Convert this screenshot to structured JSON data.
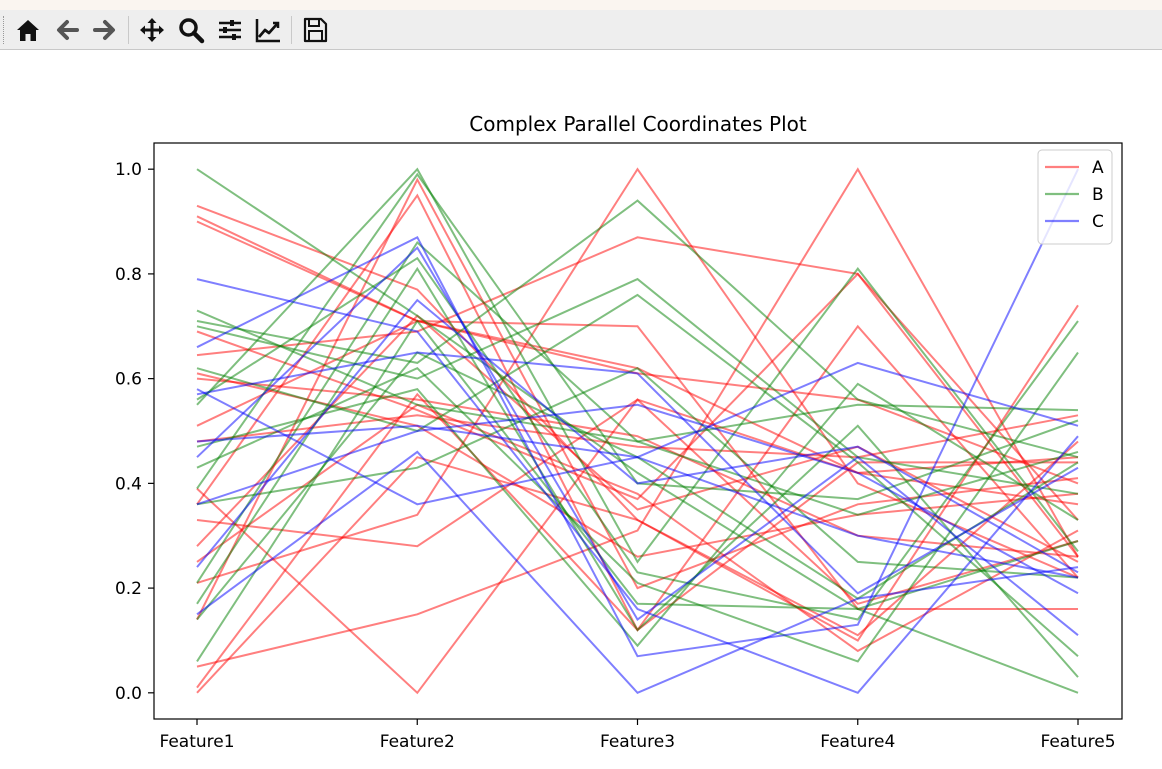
{
  "toolbar": {
    "buttons": [
      {
        "name": "home",
        "icon": "home-icon"
      },
      {
        "name": "back",
        "icon": "arrow-left-icon"
      },
      {
        "name": "forward",
        "icon": "arrow-right-icon"
      },
      {
        "name": "pan",
        "icon": "move-icon"
      },
      {
        "name": "zoom",
        "icon": "magnifier-icon"
      },
      {
        "name": "configure-subplots",
        "icon": "sliders-icon"
      },
      {
        "name": "edit-axis",
        "icon": "line-chart-icon"
      },
      {
        "name": "save",
        "icon": "floppy-disk-icon"
      }
    ]
  },
  "chart_data": {
    "type": "line",
    "title": "Complex Parallel Coordinates Plot",
    "categories": [
      "Feature1",
      "Feature2",
      "Feature3",
      "Feature4",
      "Feature5"
    ],
    "ylim": [
      -0.05,
      1.05
    ],
    "yticks": [
      0.0,
      0.2,
      0.4,
      0.6,
      0.8,
      1.0
    ],
    "ytick_labels": [
      "0.0",
      "0.2",
      "0.4",
      "0.6",
      "0.8",
      "1.0"
    ],
    "grid": false,
    "legend_position": "top-right",
    "line_alpha": 0.5,
    "series": [
      {
        "name": "A",
        "color": "#ff0000",
        "lines": [
          [
            0.93,
            0.77,
            0.33,
            0.1,
            0.74
          ],
          [
            0.91,
            0.71,
            0.7,
            0.16,
            0.16
          ],
          [
            0.9,
            0.71,
            0.62,
            0.42,
            0.36
          ],
          [
            0.69,
            0.54,
            0.37,
            0.8,
            0.26
          ],
          [
            0.645,
            0.69,
            0.87,
            0.8,
            0.33
          ],
          [
            0.61,
            0.51,
            0.26,
            0.34,
            0.38
          ],
          [
            0.6,
            0.56,
            0.49,
            0.3,
            0.26
          ],
          [
            0.51,
            0.71,
            0.61,
            0.56,
            0.4
          ],
          [
            0.48,
            0.53,
            0.47,
            0.45,
            0.53
          ],
          [
            0.36,
            0.95,
            0.12,
            0.7,
            0.22
          ],
          [
            0.33,
            0.28,
            0.56,
            0.42,
            0.45
          ],
          [
            0.28,
            0.72,
            0.35,
            0.47,
            0.25
          ],
          [
            0.25,
            0.55,
            0.38,
            0.08,
            0.31
          ],
          [
            0.21,
            0.34,
            1.0,
            0.4,
            0.22
          ],
          [
            0.14,
            0.98,
            0.2,
            0.36,
            0.41
          ],
          [
            0.05,
            0.15,
            0.31,
            1.0,
            0.26
          ],
          [
            0.01,
            0.57,
            0.12,
            0.44,
            0.44
          ],
          [
            0.0,
            0.45,
            0.33,
            0.11,
            0.48
          ],
          [
            0.39,
            0.0,
            0.56,
            0.17,
            0.29
          ]
        ]
      },
      {
        "name": "B",
        "color": "#008000",
        "lines": [
          [
            1.0,
            0.72,
            0.42,
            0.16,
            0.0
          ],
          [
            0.73,
            0.55,
            0.48,
            0.55,
            0.54
          ],
          [
            0.71,
            0.63,
            0.94,
            0.56,
            0.45
          ],
          [
            0.7,
            0.6,
            0.79,
            0.45,
            0.38
          ],
          [
            0.62,
            0.5,
            0.76,
            0.44,
            0.07
          ],
          [
            0.56,
            0.83,
            0.23,
            0.14,
            0.71
          ],
          [
            0.55,
            1.0,
            0.25,
            0.81,
            0.27
          ],
          [
            0.47,
            0.58,
            0.09,
            0.59,
            0.33
          ],
          [
            0.43,
            0.62,
            0.21,
            0.06,
            0.65
          ],
          [
            0.39,
            0.99,
            0.4,
            0.37,
            0.52
          ],
          [
            0.36,
            0.43,
            0.62,
            0.25,
            0.22
          ],
          [
            0.21,
            0.86,
            0.48,
            0.34,
            0.46
          ],
          [
            0.17,
            0.81,
            0.12,
            0.51,
            0.03
          ],
          [
            0.06,
            0.71,
            0.17,
            0.16,
            0.29
          ],
          [
            0.14,
            0.65,
            0.45,
            0.18,
            0.44
          ]
        ]
      },
      {
        "name": "C",
        "color": "#0000ff",
        "lines": [
          [
            0.79,
            0.69,
            0.16,
            0.0,
            0.49
          ],
          [
            0.66,
            0.87,
            0.07,
            0.13,
            1.0
          ],
          [
            0.58,
            0.36,
            0.45,
            0.63,
            0.51
          ],
          [
            0.57,
            0.65,
            0.61,
            0.19,
            0.43
          ],
          [
            0.48,
            0.51,
            0.45,
            0.3,
            0.22
          ],
          [
            0.45,
            0.85,
            0.14,
            0.45,
            0.11
          ],
          [
            0.36,
            0.5,
            0.55,
            0.42,
            0.19
          ],
          [
            0.24,
            0.75,
            0.4,
            0.47,
            0.23
          ],
          [
            0.15,
            0.46,
            0.0,
            0.18,
            0.24
          ]
        ]
      }
    ]
  }
}
